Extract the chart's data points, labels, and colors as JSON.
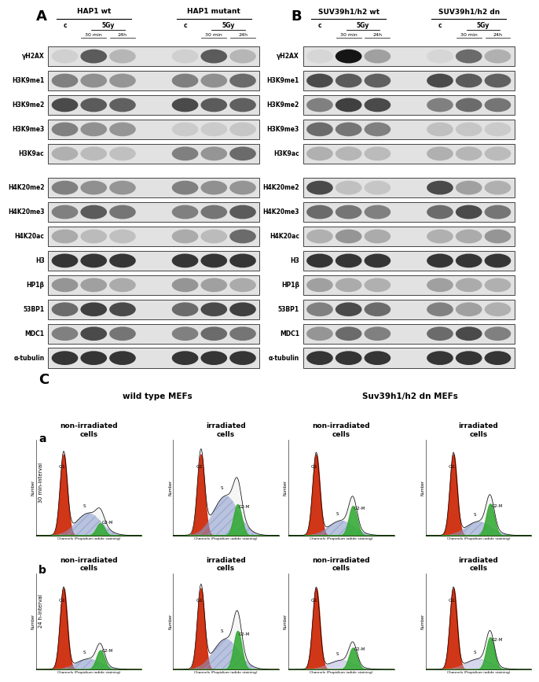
{
  "panel_A_title": "A",
  "panel_B_title": "B",
  "panel_C_title": "C",
  "panel_a_title": "a",
  "panel_b_title": "b",
  "col_group_A_left": "HAP1 wt",
  "col_group_A_right": "HAP1 mutant",
  "col_group_B_left": "SUV39h1/h2 wt",
  "col_group_B_right": "SUV39h1/h2 dn",
  "col_header_c": "c",
  "col_header_5Gy": "5Gy",
  "col_header_30min": "30 min",
  "col_header_24h": "24h",
  "row_labels_A": [
    "γH2AX",
    "H3K9me1",
    "H3K9me2",
    "H3K9me3",
    "H3K9ac",
    "H4K20me2",
    "H4K20me3",
    "H4K20ac",
    "H3",
    "HP1β",
    "53BP1",
    "MDC1",
    "α-tubulin"
  ],
  "row_labels_B": [
    "γH2AX",
    "H3K9me1",
    "H3K9me2",
    "H3K9me3",
    "H3K9ac",
    "H4K20me2",
    "H4K20me3",
    "H4K20ac",
    "H3",
    "HP1β",
    "53BP1",
    "MDC1",
    "α-tubulin"
  ],
  "wt_mef_title": "wild type MEFs",
  "suv_mef_title": "Suv39h1/h2 dn MEFs",
  "interval_a": "30 min-interval",
  "interval_b": "24 h-interval",
  "non_irr": "non-irradiated\ncells",
  "irr": "irradiated\ncells",
  "xlabel_flow": "Channels (Propidium iodide staining)",
  "ylabel_flow": "Number",
  "g1_label": "G1",
  "s_label": "S",
  "g2m_label": "G2-M",
  "bg_color": "#ffffff",
  "flow_red": "#cc2200",
  "flow_blue": "#8899cc",
  "flow_green": "#33aa33",
  "band_intensities_A": [
    [
      0.3,
      2.5,
      0.8,
      0.3,
      2.5,
      0.8
    ],
    [
      1.8,
      1.5,
      1.4,
      1.8,
      1.5,
      2.2
    ],
    [
      2.8,
      2.5,
      2.4,
      2.8,
      2.5,
      2.4
    ],
    [
      1.8,
      1.5,
      1.4,
      0.4,
      0.4,
      0.5
    ],
    [
      0.9,
      0.7,
      0.6,
      1.8,
      1.4,
      2.2
    ],
    [
      1.8,
      1.5,
      1.4,
      1.8,
      1.5,
      1.4
    ],
    [
      1.8,
      2.5,
      2.0,
      1.8,
      2.0,
      2.5
    ],
    [
      1.0,
      0.7,
      0.6,
      1.0,
      0.7,
      2.2
    ],
    [
      3.2,
      3.2,
      3.2,
      3.2,
      3.2,
      3.2
    ],
    [
      1.4,
      1.2,
      1.0,
      1.4,
      1.2,
      1.0
    ],
    [
      2.2,
      3.0,
      2.8,
      2.2,
      2.8,
      3.0
    ],
    [
      1.8,
      2.8,
      2.0,
      1.8,
      2.2,
      2.0
    ],
    [
      3.2,
      3.2,
      3.2,
      3.2,
      3.2,
      3.2
    ]
  ],
  "band_intensities_B": [
    [
      0.2,
      3.8,
      1.2,
      0.2,
      2.2,
      0.9
    ],
    [
      2.8,
      2.5,
      2.4,
      2.8,
      2.5,
      2.4
    ],
    [
      1.8,
      3.0,
      2.8,
      1.8,
      2.2,
      2.0
    ],
    [
      2.2,
      2.0,
      1.8,
      0.6,
      0.5,
      0.4
    ],
    [
      0.9,
      0.8,
      0.7,
      0.9,
      0.8,
      0.7
    ],
    [
      2.8,
      0.6,
      0.5,
      2.8,
      1.2,
      0.9
    ],
    [
      2.2,
      2.0,
      1.8,
      2.2,
      2.8,
      2.0
    ],
    [
      0.9,
      1.4,
      1.0,
      0.9,
      1.0,
      1.4
    ],
    [
      3.2,
      3.2,
      3.2,
      3.2,
      3.2,
      3.2
    ],
    [
      1.2,
      1.0,
      0.9,
      1.2,
      1.0,
      0.9
    ],
    [
      1.8,
      2.8,
      2.2,
      1.8,
      1.2,
      0.9
    ],
    [
      1.4,
      2.2,
      1.8,
      2.2,
      2.8,
      1.8
    ],
    [
      3.2,
      3.2,
      3.2,
      3.2,
      3.2,
      3.2
    ]
  ]
}
